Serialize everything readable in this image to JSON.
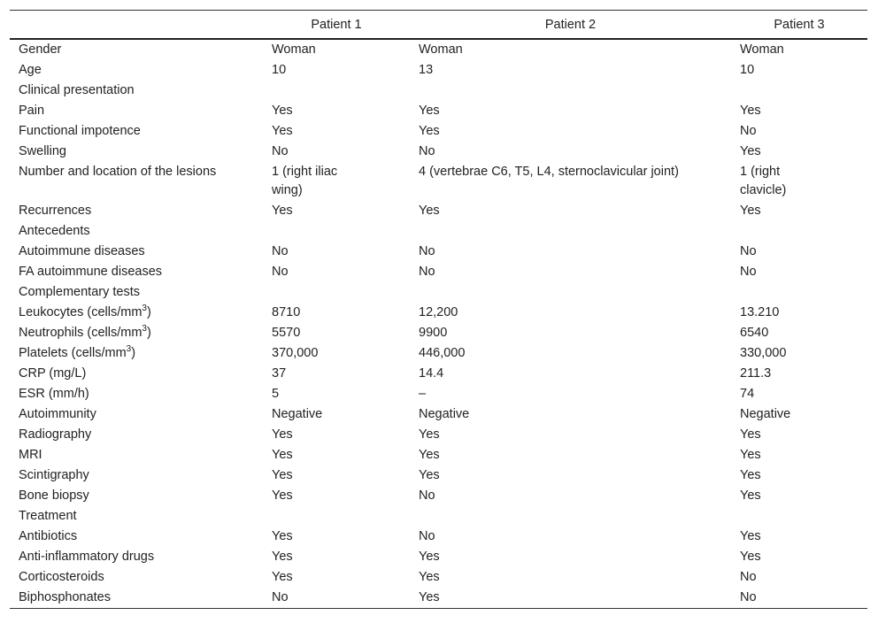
{
  "table": {
    "header": [
      "Patient 1",
      "Patient 2",
      "Patient 3"
    ],
    "rows": [
      [
        "Gender",
        "Woman",
        "Woman",
        "Woman"
      ],
      [
        "Age",
        "10",
        "13",
        "10"
      ],
      [
        "Clinical presentation"
      ],
      [
        "Pain",
        "Yes",
        "Yes",
        "Yes"
      ],
      [
        "Functional impotence",
        "Yes",
        "Yes",
        "No"
      ],
      [
        "Swelling",
        "No",
        "No",
        "Yes"
      ],
      [
        "Number and location of the lesions",
        "1 (right iliac wing)",
        "4 (vertebrae C6, T5, L4, sternoclavicular joint)",
        "1 (right clavicle)"
      ],
      [
        "Recurrences",
        "Yes",
        "Yes",
        "Yes"
      ],
      [
        "Antecedents"
      ],
      [
        "Autoimmune diseases",
        "No",
        "No",
        "No"
      ],
      [
        "FA autoimmune diseases",
        "No",
        "No",
        "No"
      ],
      [
        "Complementary tests"
      ],
      [
        {
          "text": "Leukocytes (cells/mm",
          "sup": "3",
          "after": ")"
        },
        "8710",
        "12,200",
        "13.210"
      ],
      [
        {
          "text": "Neutrophils (cells/mm",
          "sup": "3",
          "after": ")"
        },
        "5570",
        "9900",
        "6540"
      ],
      [
        {
          "text": "Platelets (cells/mm",
          "sup": "3",
          "after": ")"
        },
        "370,000",
        "446,000",
        "330,000"
      ],
      [
        "CRP (mg/L)",
        "37",
        "14.4",
        "211.3"
      ],
      [
        "ESR (mm/h)",
        "5",
        "–",
        "74"
      ],
      [
        "Autoimmunity",
        "Negative",
        "Negative",
        "Negative"
      ],
      [
        "Radiography",
        "Yes",
        "Yes",
        "Yes"
      ],
      [
        "MRI",
        "Yes",
        "Yes",
        "Yes"
      ],
      [
        "Scintigraphy",
        "Yes",
        "Yes",
        "Yes"
      ],
      [
        "Bone biopsy",
        "Yes",
        "No",
        "Yes"
      ],
      [
        "Treatment"
      ],
      [
        "Antibiotics",
        "Yes",
        "No",
        "Yes"
      ],
      [
        "Anti-inflammatory drugs",
        "Yes",
        "Yes",
        "Yes"
      ],
      [
        "Corticosteroids",
        "Yes",
        "Yes",
        "No"
      ],
      [
        "Biphosphonates",
        "No",
        "Yes",
        "No"
      ]
    ]
  }
}
